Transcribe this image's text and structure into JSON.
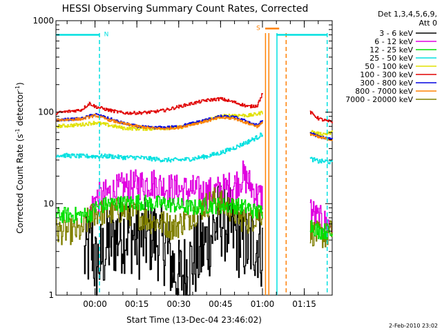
{
  "chart_data": {
    "type": "line",
    "title": "HESSI Observing Summary Count Rates, Corrected",
    "xlabel": "Start Time (13-Dec-04 23:46:02)",
    "ylabel_main": "Corrected Count Rate (s",
    "ylabel_sup1": "-1",
    "ylabel_mid": " detector",
    "ylabel_sup2": "-1",
    "ylabel_end": ")",
    "y_scale": "log",
    "ylim": [
      1,
      1000
    ],
    "xlim_minutes": [
      -14,
      85
    ],
    "y_ticks": [
      {
        "value": 1,
        "label": "1"
      },
      {
        "value": 10,
        "label": "10"
      },
      {
        "value": 100,
        "label": "100"
      },
      {
        "value": 1000,
        "label": "1000"
      }
    ],
    "x_ticks": [
      {
        "value": 0,
        "label": "00:00"
      },
      {
        "value": 15,
        "label": "00:15"
      },
      {
        "value": 30,
        "label": "00:30"
      },
      {
        "value": 45,
        "label": "00:45"
      },
      {
        "value": 60,
        "label": "01:00"
      },
      {
        "value": 75,
        "label": "01:15"
      }
    ],
    "legend_header": [
      "Det 1,3,4,5,6,9,",
      "Att 0"
    ],
    "legend_placement": "right",
    "footer_date": "2-Feb-2010 23:02",
    "series": [
      {
        "name": "3 - 6 keV",
        "color": "#000000",
        "noise": 0.9,
        "x": [
          -14,
          -9,
          -4,
          -1,
          0,
          2,
          5,
          8,
          12,
          15,
          20,
          25,
          28,
          30,
          33,
          38,
          43,
          45,
          48,
          52,
          55,
          58,
          60,
          60.5,
          77,
          80,
          83,
          85
        ],
        "values": [
          null,
          null,
          2.5,
          3.5,
          2.0,
          2.5,
          3.8,
          4.5,
          5.0,
          4.0,
          4.5,
          3.5,
          2.0,
          1.5,
          2.0,
          3.0,
          5.5,
          7.0,
          5.5,
          4.0,
          3.5,
          4.0,
          3.0,
          null,
          null,
          null,
          null,
          null
        ]
      },
      {
        "name": "6 - 12 keV",
        "color": "#e000e0",
        "noise": 0.35,
        "x": [
          -14,
          -6,
          -4,
          -2,
          0,
          5,
          10,
          15,
          20,
          25,
          30,
          35,
          40,
          45,
          50,
          53,
          55,
          58,
          60,
          60.5,
          77,
          79,
          82,
          85
        ],
        "values": [
          null,
          null,
          null,
          8.0,
          11.0,
          13.0,
          15.0,
          16.0,
          17.0,
          15.0,
          14.0,
          14.0,
          13.0,
          14.0,
          16.0,
          20.0,
          17.0,
          12.0,
          12.0,
          null,
          9.0,
          7.0,
          6.0,
          6.0
        ]
      },
      {
        "name": "12 - 25 keV",
        "color": "#00e000",
        "noise": 0.18,
        "x": [
          -14,
          -5,
          -2,
          0,
          5,
          10,
          15,
          20,
          25,
          30,
          35,
          40,
          45,
          50,
          55,
          58,
          60,
          60.5,
          77,
          80,
          83,
          85
        ],
        "values": [
          7.5,
          7.5,
          7.5,
          9.0,
          10.0,
          10.0,
          10.5,
          10.0,
          10.0,
          9.5,
          9.0,
          9.5,
          9.5,
          9.5,
          9.0,
          8.0,
          8.5,
          null,
          6.0,
          5.0,
          5.0,
          4.5
        ]
      },
      {
        "name": "25 - 50 keV",
        "color": "#00e0e0",
        "noise": 0.05,
        "x": [
          -14,
          -5,
          0,
          5,
          10,
          15,
          20,
          25,
          30,
          35,
          40,
          45,
          50,
          55,
          58,
          60,
          60.5,
          77,
          80,
          83,
          85
        ],
        "values": [
          34,
          33,
          33,
          33,
          32,
          32,
          31,
          30,
          30,
          31,
          33,
          36,
          41,
          48,
          53,
          58,
          null,
          31,
          29,
          29,
          28
        ]
      },
      {
        "name": "50 - 100 keV",
        "color": "#e0e000",
        "noise": 0.04,
        "x": [
          -14,
          -5,
          0,
          5,
          10,
          15,
          20,
          25,
          30,
          35,
          40,
          45,
          50,
          55,
          58,
          60,
          60.5,
          77,
          80,
          83,
          85
        ],
        "values": [
          70,
          73,
          77,
          72,
          67,
          66,
          66,
          67,
          68,
          74,
          82,
          90,
          93,
          92,
          95,
          100,
          null,
          62,
          58,
          58,
          60
        ]
      },
      {
        "name": "100 - 300 keV",
        "color": "#e00000",
        "noise": 0.035,
        "x": [
          -14,
          -5,
          -2,
          0,
          5,
          10,
          15,
          20,
          25,
          30,
          35,
          40,
          45,
          50,
          55,
          58,
          60,
          60.5,
          77,
          80,
          83,
          85
        ],
        "values": [
          98,
          106,
          125,
          115,
          105,
          98,
          98,
          100,
          105,
          115,
          125,
          135,
          140,
          128,
          115,
          118,
          160,
          null,
          100,
          85,
          80,
          78
        ]
      },
      {
        "name": "300 - 800 keV",
        "color": "#0000e0",
        "noise": 0.03,
        "x": [
          -14,
          -5,
          0,
          5,
          10,
          15,
          20,
          25,
          30,
          35,
          40,
          45,
          50,
          55,
          58,
          60,
          60.5,
          77,
          80,
          83,
          85
        ],
        "values": [
          82,
          85,
          95,
          85,
          76,
          70,
          68,
          68,
          70,
          76,
          83,
          90,
          88,
          78,
          72,
          80,
          null,
          60,
          54,
          52,
          50
        ]
      },
      {
        "name": "800 - 7000 keV",
        "color": "#ff8000",
        "noise": 0.03,
        "x": [
          -14,
          -5,
          0,
          5,
          10,
          15,
          20,
          25,
          30,
          35,
          40,
          45,
          50,
          55,
          58,
          60,
          60.5,
          77,
          80,
          83,
          85
        ],
        "values": [
          82,
          84,
          92,
          82,
          75,
          70,
          67,
          66,
          68,
          74,
          80,
          87,
          85,
          75,
          70,
          76,
          null,
          58,
          53,
          51,
          50
        ]
      },
      {
        "name": "7000 - 20000 keV",
        "color": "#808000",
        "noise": 0.3,
        "x": [
          -14,
          -5,
          -2,
          0,
          5,
          10,
          15,
          20,
          25,
          28,
          32,
          38,
          43,
          45,
          48,
          52,
          55,
          58,
          60,
          60.5,
          77,
          80,
          83,
          85
        ],
        "values": [
          5.0,
          5.0,
          7.0,
          8.0,
          8.0,
          8.5,
          7.5,
          6.5,
          6.0,
          5.5,
          6.5,
          9.0,
          11.0,
          10.0,
          9.0,
          7.0,
          6.5,
          7.5,
          8.0,
          null,
          5.0,
          4.5,
          4.5,
          5.0
        ]
      }
    ],
    "status_bars": [
      {
        "label": "N",
        "color": "#00e0e0",
        "segments": [
          [
            -14,
            1.6
          ],
          [
            65,
            83
          ]
        ],
        "level": 700
      },
      {
        "label": "S",
        "color": "#ff8000",
        "segments": [
          [
            61,
            66
          ]
        ],
        "level": 820
      }
    ],
    "vertical_markers": [
      {
        "x": 1.6,
        "color": "#00e0e0",
        "style": "dashed"
      },
      {
        "x": 61.1,
        "color": "#ff8000",
        "style": "solid"
      },
      {
        "x": 62.3,
        "color": "#ff8000",
        "style": "solid"
      },
      {
        "x": 65.2,
        "color": "#00e0e0",
        "style": "solid"
      },
      {
        "x": 68.5,
        "color": "#ff8000",
        "style": "dashed"
      },
      {
        "x": 83.2,
        "color": "#00e0e0",
        "style": "dashed"
      }
    ]
  }
}
